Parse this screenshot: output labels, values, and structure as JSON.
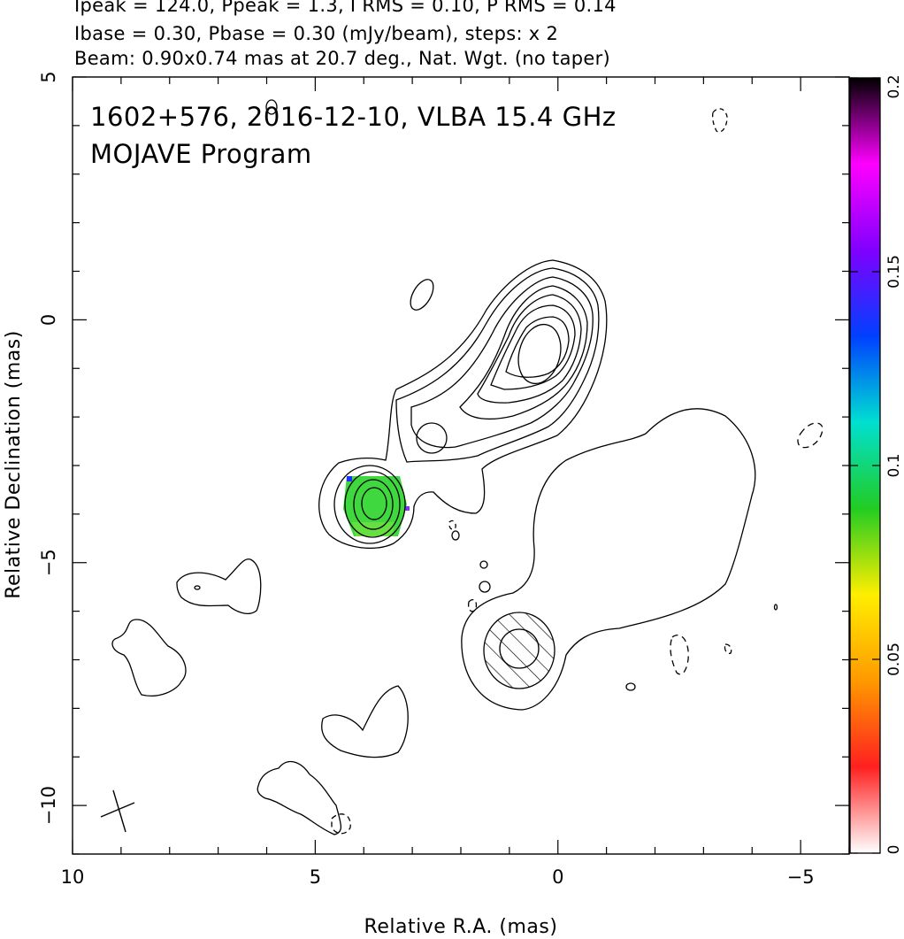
{
  "header": {
    "line1": "Ipeak = 124.0, Ppeak = 1.3, I RMS = 0.10, P RMS = 0.14",
    "line2": "Ibase = 0.30, Pbase = 0.30 (mJy/beam), steps: x 2",
    "line3": "Beam: 0.90x0.74 mas at 20.7 deg., Nat. Wgt. (no taper)"
  },
  "chart_data": {
    "type": "contour",
    "title": "1602+576, 2016-12-10, VLBA 15.4 GHz",
    "subtitle": "MOJAVE Program",
    "xlabel": "Relative R.A. (mas)",
    "ylabel": "Relative Declination (mas)",
    "xlim": [
      10,
      -6
    ],
    "ylim": [
      -11,
      5
    ],
    "x_ticks": [
      "10",
      "5",
      "0",
      "−5"
    ],
    "y_ticks": [
      "5",
      "0",
      "−5",
      "−10"
    ],
    "colorbar": {
      "range": [
        0,
        0.2
      ],
      "ticks": [
        "0",
        "0.05",
        "0.1",
        "0.15",
        "0.2"
      ],
      "colors": [
        "#ffffff",
        "#ff2020",
        "#ff9900",
        "#ffee00",
        "#22cc22",
        "#00e0d0",
        "#0040ff",
        "#8000ff",
        "#ff00ff",
        "#000000"
      ]
    },
    "core_position_mas": [
      0.2,
      -0.8
    ],
    "polarized_knot_position_mas": [
      3.8,
      -3.8
    ],
    "hatched_knot_position_mas": [
      1.0,
      -6.8
    ],
    "beam": {
      "major_mas": 0.9,
      "minor_mas": 0.74,
      "pa_deg": 20.7
    }
  }
}
